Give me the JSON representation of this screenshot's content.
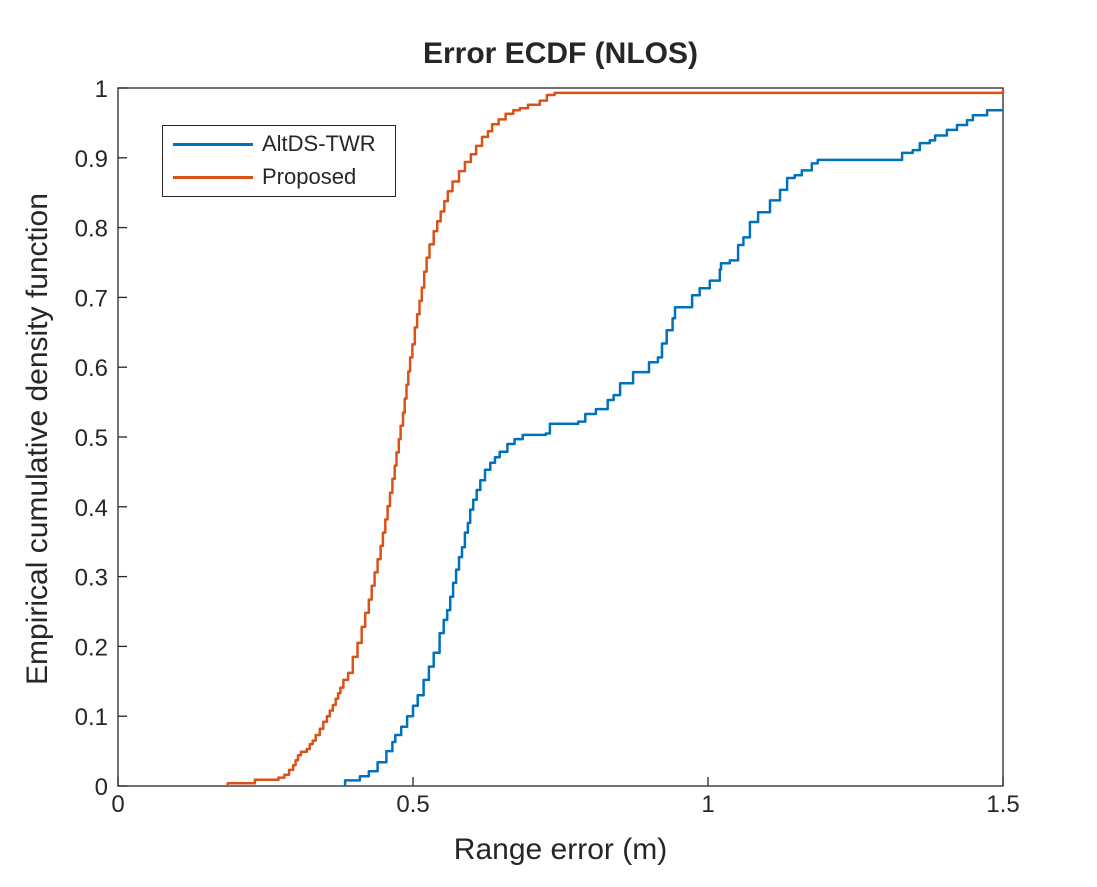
{
  "chart_data": {
    "type": "line",
    "subtype": "ecdf-step",
    "title": "Error ECDF (NLOS)",
    "xlabel": "Range error (m)",
    "ylabel": "Empirical cumulative density function",
    "xlim": [
      0,
      1.5
    ],
    "ylim": [
      0,
      1
    ],
    "grid": false,
    "box": true,
    "background": "#ffffff",
    "axis_color": "#262626",
    "text_color": "#262626",
    "tick_length": 9,
    "x_tick_values": [
      0,
      0.5,
      1,
      1.5
    ],
    "x_tick_labels": [
      "0",
      "0.5",
      "1",
      "1.5"
    ],
    "y_tick_values": [
      0,
      0.1,
      0.2,
      0.3,
      0.4,
      0.5,
      0.6,
      0.7,
      0.8,
      0.9,
      1
    ],
    "y_tick_labels": [
      "0",
      "0.1",
      "0.2",
      "0.3",
      "0.4",
      "0.5",
      "0.6",
      "0.7",
      "0.8",
      "0.9",
      "1"
    ],
    "legend": {
      "position": "top-left",
      "entries": [
        "AltDS-TWR",
        "Proposed"
      ]
    },
    "series": [
      {
        "name": "AltDS-TWR",
        "color": "#0072BD",
        "line_width": 2.5,
        "points": [
          [
            0.385,
            0
          ],
          [
            0.385,
            0.008
          ],
          [
            0.405,
            0.008
          ],
          [
            0.41,
            0.014
          ],
          [
            0.425,
            0.021
          ],
          [
            0.44,
            0.034
          ],
          [
            0.455,
            0.05
          ],
          [
            0.465,
            0.063
          ],
          [
            0.47,
            0.073
          ],
          [
            0.48,
            0.085
          ],
          [
            0.49,
            0.1
          ],
          [
            0.5,
            0.115
          ],
          [
            0.508,
            0.13
          ],
          [
            0.518,
            0.152
          ],
          [
            0.527,
            0.171
          ],
          [
            0.535,
            0.191
          ],
          [
            0.545,
            0.219
          ],
          [
            0.552,
            0.238
          ],
          [
            0.558,
            0.252
          ],
          [
            0.563,
            0.271
          ],
          [
            0.568,
            0.291
          ],
          [
            0.573,
            0.31
          ],
          [
            0.578,
            0.328
          ],
          [
            0.583,
            0.342
          ],
          [
            0.588,
            0.363
          ],
          [
            0.593,
            0.377
          ],
          [
            0.597,
            0.396
          ],
          [
            0.602,
            0.41
          ],
          [
            0.608,
            0.424
          ],
          [
            0.614,
            0.438
          ],
          [
            0.622,
            0.453
          ],
          [
            0.631,
            0.463
          ],
          [
            0.639,
            0.471
          ],
          [
            0.647,
            0.479
          ],
          [
            0.66,
            0.49
          ],
          [
            0.672,
            0.497
          ],
          [
            0.686,
            0.503
          ],
          [
            0.725,
            0.505
          ],
          [
            0.732,
            0.519
          ],
          [
            0.78,
            0.522
          ],
          [
            0.792,
            0.533
          ],
          [
            0.81,
            0.54
          ],
          [
            0.83,
            0.553
          ],
          [
            0.84,
            0.56
          ],
          [
            0.851,
            0.577
          ],
          [
            0.873,
            0.593
          ],
          [
            0.9,
            0.607
          ],
          [
            0.915,
            0.614
          ],
          [
            0.922,
            0.634
          ],
          [
            0.93,
            0.653
          ],
          [
            0.94,
            0.67
          ],
          [
            0.944,
            0.686
          ],
          [
            0.964,
            0.686
          ],
          [
            0.973,
            0.703
          ],
          [
            0.986,
            0.713
          ],
          [
            1.003,
            0.724
          ],
          [
            1.02,
            0.74
          ],
          [
            1.022,
            0.749
          ],
          [
            1.037,
            0.753
          ],
          [
            1.051,
            0.775
          ],
          [
            1.06,
            0.786
          ],
          [
            1.071,
            0.808
          ],
          [
            1.085,
            0.822
          ],
          [
            1.105,
            0.839
          ],
          [
            1.122,
            0.854
          ],
          [
            1.134,
            0.871
          ],
          [
            1.147,
            0.875
          ],
          [
            1.159,
            0.882
          ],
          [
            1.176,
            0.892
          ],
          [
            1.186,
            0.897
          ],
          [
            1.325,
            0.897
          ],
          [
            1.329,
            0.907
          ],
          [
            1.347,
            0.911
          ],
          [
            1.359,
            0.921
          ],
          [
            1.376,
            0.925
          ],
          [
            1.385,
            0.932
          ],
          [
            1.405,
            0.94
          ],
          [
            1.422,
            0.947
          ],
          [
            1.439,
            0.954
          ],
          [
            1.449,
            0.961
          ],
          [
            1.473,
            0.968
          ],
          [
            1.5,
            0.968
          ]
        ]
      },
      {
        "name": "Proposed",
        "color": "#D95319",
        "line_width": 2.5,
        "points": [
          [
            0.186,
            0
          ],
          [
            0.186,
            0.004
          ],
          [
            0.232,
            0.004
          ],
          [
            0.232,
            0.009
          ],
          [
            0.272,
            0.012
          ],
          [
            0.282,
            0.016
          ],
          [
            0.29,
            0.023
          ],
          [
            0.297,
            0.03
          ],
          [
            0.301,
            0.037
          ],
          [
            0.305,
            0.044
          ],
          [
            0.31,
            0.049
          ],
          [
            0.32,
            0.053
          ],
          [
            0.325,
            0.06
          ],
          [
            0.33,
            0.065
          ],
          [
            0.335,
            0.073
          ],
          [
            0.342,
            0.082
          ],
          [
            0.348,
            0.092
          ],
          [
            0.354,
            0.1
          ],
          [
            0.359,
            0.108
          ],
          [
            0.364,
            0.116
          ],
          [
            0.369,
            0.125
          ],
          [
            0.373,
            0.133
          ],
          [
            0.377,
            0.141
          ],
          [
            0.382,
            0.152
          ],
          [
            0.39,
            0.162
          ],
          [
            0.398,
            0.185
          ],
          [
            0.406,
            0.205
          ],
          [
            0.413,
            0.228
          ],
          [
            0.419,
            0.248
          ],
          [
            0.425,
            0.267
          ],
          [
            0.43,
            0.287
          ],
          [
            0.435,
            0.306
          ],
          [
            0.44,
            0.325
          ],
          [
            0.445,
            0.344
          ],
          [
            0.449,
            0.363
          ],
          [
            0.453,
            0.382
          ],
          [
            0.457,
            0.401
          ],
          [
            0.461,
            0.42
          ],
          [
            0.465,
            0.44
          ],
          [
            0.469,
            0.459
          ],
          [
            0.472,
            0.478
          ],
          [
            0.476,
            0.497
          ],
          [
            0.479,
            0.516
          ],
          [
            0.483,
            0.535
          ],
          [
            0.486,
            0.555
          ],
          [
            0.489,
            0.575
          ],
          [
            0.492,
            0.594
          ],
          [
            0.495,
            0.614
          ],
          [
            0.499,
            0.633
          ],
          [
            0.503,
            0.657
          ],
          [
            0.507,
            0.676
          ],
          [
            0.511,
            0.695
          ],
          [
            0.515,
            0.714
          ],
          [
            0.519,
            0.737
          ],
          [
            0.523,
            0.757
          ],
          [
            0.528,
            0.776
          ],
          [
            0.535,
            0.795
          ],
          [
            0.541,
            0.809
          ],
          [
            0.547,
            0.823
          ],
          [
            0.553,
            0.838
          ],
          [
            0.559,
            0.852
          ],
          [
            0.567,
            0.866
          ],
          [
            0.578,
            0.881
          ],
          [
            0.588,
            0.894
          ],
          [
            0.598,
            0.905
          ],
          [
            0.607,
            0.917
          ],
          [
            0.617,
            0.93
          ],
          [
            0.627,
            0.938
          ],
          [
            0.634,
            0.948
          ],
          [
            0.645,
            0.955
          ],
          [
            0.657,
            0.963
          ],
          [
            0.67,
            0.968
          ],
          [
            0.681,
            0.971
          ],
          [
            0.695,
            0.976
          ],
          [
            0.715,
            0.982
          ],
          [
            0.727,
            0.99
          ],
          [
            0.74,
            0.993
          ],
          [
            1.49,
            0.993
          ],
          [
            1.5,
            0.998
          ]
        ]
      }
    ]
  }
}
